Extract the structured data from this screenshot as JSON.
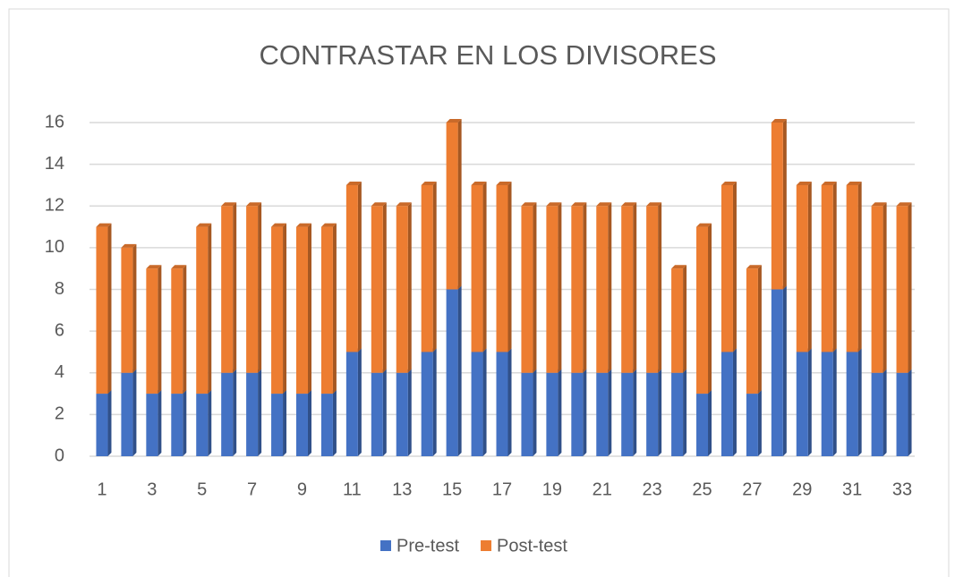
{
  "chart_data": {
    "type": "stacked_bar",
    "title": "CONTRASTAR EN LOS DIVISORES",
    "categories": [
      "1",
      null,
      "3",
      null,
      "5",
      null,
      "7",
      null,
      "9",
      null,
      "11",
      null,
      "13",
      null,
      "15",
      null,
      "17",
      null,
      "19",
      null,
      "21",
      null,
      "23",
      null,
      "25",
      null,
      "27",
      null,
      "29",
      null,
      "31",
      null,
      "33"
    ],
    "series": [
      {
        "name": "Pre-test",
        "color": "#4472c4",
        "values": [
          3,
          4,
          3,
          3,
          3,
          4,
          4,
          3,
          3,
          3,
          5,
          4,
          4,
          5,
          8,
          5,
          5,
          4,
          4,
          4,
          4,
          4,
          4,
          4,
          3,
          5,
          3,
          8,
          5,
          5,
          5,
          4,
          4
        ]
      },
      {
        "name": "Post-test",
        "color": "#ed7d31",
        "values": [
          8,
          6,
          6,
          6,
          8,
          8,
          8,
          8,
          8,
          8,
          8,
          8,
          8,
          8,
          8,
          8,
          8,
          8,
          8,
          8,
          8,
          8,
          8,
          5,
          8,
          8,
          6,
          8,
          8,
          8,
          8,
          8,
          8
        ]
      }
    ],
    "ylim": [
      0,
      16
    ],
    "yticks": [
      0,
      2,
      4,
      6,
      8,
      10,
      12,
      14,
      16
    ],
    "grid": true,
    "legend": "bottom"
  }
}
